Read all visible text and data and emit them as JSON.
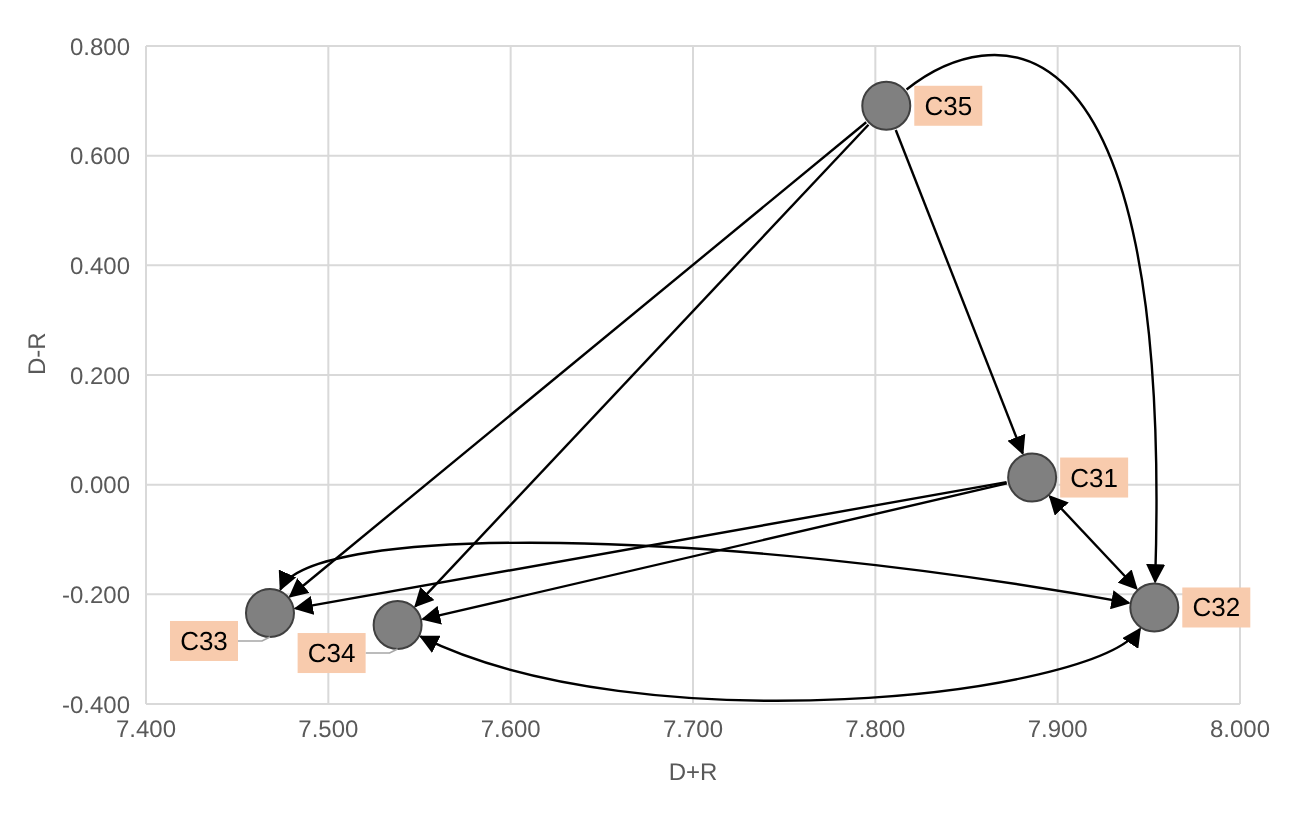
{
  "chart_data": {
    "type": "scatter",
    "xlabel": "D+R",
    "ylabel": "D-R",
    "x": [
      7.806,
      7.886,
      7.953,
      7.468,
      7.538
    ],
    "series": [
      {
        "color": "#808080",
        "values": [
          0.691,
          0.013,
          -0.224,
          -0.234,
          -0.256
        ]
      }
    ],
    "annotations": [
      {
        "text": "C35",
        "x": 7.806,
        "y": 0.691
      },
      {
        "text": "C31",
        "x": 7.886,
        "y": 0.013
      },
      {
        "text": "C32",
        "x": 7.953,
        "y": -0.224
      },
      {
        "text": "C33",
        "x": 7.468,
        "y": -0.234
      },
      {
        "text": "C34",
        "x": 7.538,
        "y": -0.256
      }
    ],
    "xlim": [
      7.4,
      8.0
    ],
    "xticks": [
      {
        "value": 7.4,
        "label": "7.400"
      },
      {
        "value": 7.5,
        "label": "7.500"
      },
      {
        "value": 7.6,
        "label": "7.600"
      },
      {
        "value": 7.7,
        "label": "7.700"
      },
      {
        "value": 7.8,
        "label": "7.800"
      },
      {
        "value": 7.9,
        "label": "7.900"
      },
      {
        "value": 8.0,
        "label": "8.000"
      }
    ],
    "ylim": [
      -0.4,
      0.8
    ],
    "yticks": [
      {
        "value": -0.4,
        "label": "-0.400"
      },
      {
        "value": -0.2,
        "label": "-0.200"
      },
      {
        "value": 0,
        "label": "0.000"
      },
      {
        "value": 0.2,
        "label": "0.200"
      },
      {
        "value": 0.4,
        "label": "0.400"
      },
      {
        "value": 0.6,
        "label": "0.600"
      },
      {
        "value": 0.8,
        "label": "0.800"
      }
    ],
    "grid": true,
    "marker": "circle"
  }
}
